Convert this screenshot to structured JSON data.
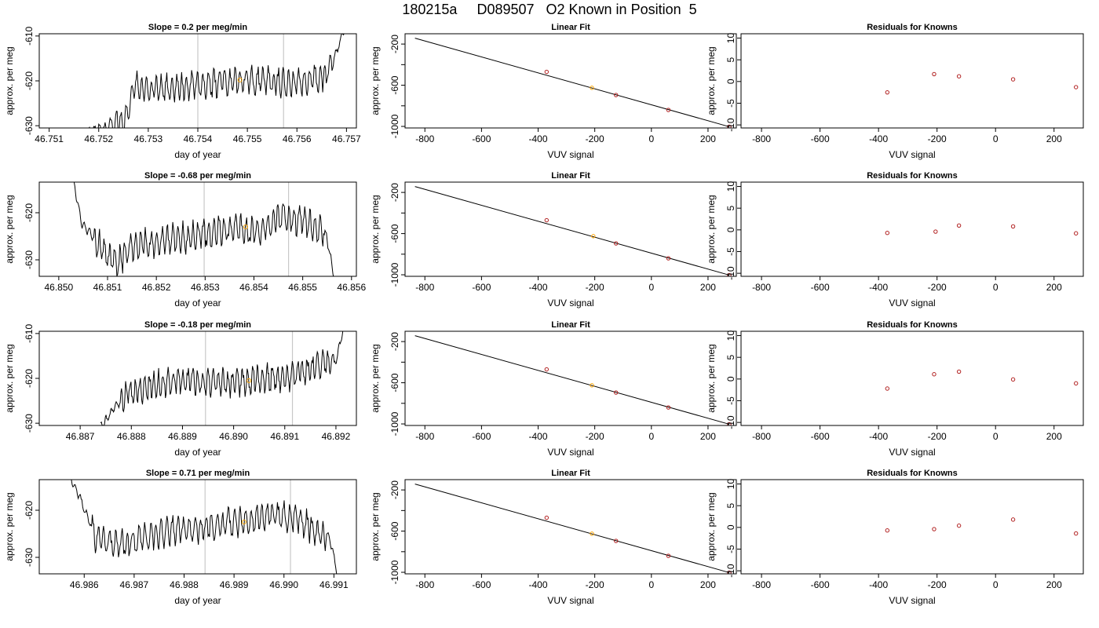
{
  "figure": {
    "title": "180215a     D089507   O2 Known in Position  5"
  },
  "colors": {
    "trace": "#000000",
    "fit_points": "#b22222",
    "highlight_point": "#ffa500",
    "marker_lines": "#c8c8c8",
    "residual_points": "#b22222"
  },
  "chart_data": [
    {
      "type": "line",
      "row": 0,
      "col": 0,
      "title": "Slope =  0.2  per meg/min",
      "xlabel": "day of year",
      "ylabel": "approx. per meg",
      "xlim": [
        46.7508,
        46.7572
      ],
      "ylim": [
        -630.5,
        -609.5
      ],
      "xticks": [
        46.751,
        46.752,
        46.753,
        46.754,
        46.755,
        46.756,
        46.757
      ],
      "xtick_labels": [
        "46.751",
        "46.752",
        "46.753",
        "46.754",
        "46.755",
        "46.756",
        "46.757"
      ],
      "yticks": [
        -610,
        -620,
        -630
      ],
      "ytick_labels": [
        "-610",
        "-620",
        "-630"
      ],
      "vlines": [
        46.754,
        46.75573
      ],
      "highlight": {
        "x": 46.75485,
        "y": -619.8
      },
      "trace": {
        "x_start": 46.7518,
        "x_end": 46.75695,
        "segments": [
          [
            0,
            -631
          ],
          [
            0.1,
            -630
          ],
          [
            0.15,
            -628
          ],
          [
            0.18,
            -620.5
          ],
          [
            0.22,
            -622
          ],
          [
            0.4,
            -621
          ],
          [
            0.62,
            -620
          ],
          [
            0.8,
            -620.5
          ],
          [
            0.93,
            -619
          ],
          [
            0.98,
            -612
          ],
          [
            1.0,
            -609
          ]
        ]
      }
    },
    {
      "type": "scatter",
      "row": 0,
      "col": 1,
      "title": "Linear Fit",
      "xlabel": "VUV signal",
      "ylabel": "approx. per meg",
      "xlim": [
        -870,
        300
      ],
      "ylim": [
        -1015,
        -100
      ],
      "xticks": [
        -800,
        -600,
        -400,
        -200,
        0,
        200
      ],
      "xtick_labels": [
        "-800",
        "-600",
        "-400",
        "-200",
        "0",
        "200"
      ],
      "yticks": [
        -200,
        -600,
        -1000
      ],
      "ytick_labels": [
        "-200",
        "-600",
        "-1000"
      ],
      "minor_yticks": [
        -400,
        -800
      ],
      "fit_line": {
        "x": [
          -835,
          275
        ],
        "y": [
          -143,
          -1003
        ]
      },
      "points": {
        "x": [
          -370,
          -210,
          -125,
          60,
          275
        ],
        "y": [
          -470,
          -625,
          -695,
          -840,
          -1003
        ]
      },
      "highlight_index": 1
    },
    {
      "type": "scatter",
      "row": 0,
      "col": 2,
      "title": "Residuals for Knowns",
      "xlabel": "VUV signal",
      "ylabel": "approx. per meg",
      "xlim": [
        -870,
        300
      ],
      "ylim": [
        -10.7,
        11
      ],
      "xticks": [
        -800,
        -600,
        -400,
        -200,
        0,
        200
      ],
      "xtick_labels": [
        "-800",
        "-600",
        "-400",
        "-200",
        "0",
        "200"
      ],
      "yticks": [
        10,
        5,
        0,
        -5,
        -10
      ],
      "ytick_labels": [
        "10",
        "5",
        "0",
        "-5",
        "-10"
      ],
      "points": {
        "x": [
          -370,
          -210,
          -125,
          60,
          275
        ],
        "y": [
          -2.5,
          1.7,
          1.2,
          0.5,
          -1.3
        ]
      }
    },
    {
      "type": "line",
      "row": 1,
      "col": 0,
      "title": "Slope =  -0.68  per meg/min",
      "xlabel": "day of year",
      "ylabel": "approx. per meg",
      "xlim": [
        46.8496,
        46.8561
      ],
      "ylim": [
        -633.5,
        -613.5
      ],
      "xticks": [
        46.85,
        46.851,
        46.852,
        46.853,
        46.854,
        46.855,
        46.856
      ],
      "xtick_labels": [
        "46.850",
        "46.851",
        "46.852",
        "46.853",
        "46.854",
        "46.855",
        "46.856"
      ],
      "yticks": [
        -620,
        -630
      ],
      "ytick_labels": [
        "-620",
        "-630"
      ],
      "vlines": [
        46.85298,
        46.85471
      ],
      "highlight": {
        "x": 46.85383,
        "y": -623
      },
      "trace": {
        "x_start": 46.8503,
        "x_end": 46.85565,
        "segments": [
          [
            0,
            -613
          ],
          [
            0.03,
            -622
          ],
          [
            0.1,
            -627
          ],
          [
            0.17,
            -631
          ],
          [
            0.22,
            -627
          ],
          [
            0.4,
            -625.5
          ],
          [
            0.6,
            -623.5
          ],
          [
            0.7,
            -624
          ],
          [
            0.8,
            -620.5
          ],
          [
            0.92,
            -623
          ],
          [
            0.97,
            -625
          ],
          [
            1.0,
            -634
          ]
        ]
      }
    },
    {
      "type": "scatter",
      "row": 1,
      "col": 1,
      "title": "Linear Fit",
      "xlabel": "VUV signal",
      "ylabel": "approx. per meg",
      "xlim": [
        -870,
        300
      ],
      "ylim": [
        -1015,
        -100
      ],
      "xticks": [
        -800,
        -600,
        -400,
        -200,
        0,
        200
      ],
      "xtick_labels": [
        "-800",
        "-600",
        "-400",
        "-200",
        "0",
        "200"
      ],
      "yticks": [
        -200,
        -600,
        -1000
      ],
      "ytick_labels": [
        "-200",
        "-600",
        "-1000"
      ],
      "minor_yticks": [
        -400,
        -800
      ],
      "fit_line": {
        "x": [
          -835,
          275
        ],
        "y": [
          -143,
          -1003
        ]
      },
      "points": {
        "x": [
          -370,
          -205,
          -125,
          60,
          275
        ],
        "y": [
          -470,
          -625,
          -695,
          -840,
          -1003
        ]
      },
      "highlight_index": 1
    },
    {
      "type": "scatter",
      "row": 1,
      "col": 2,
      "title": "Residuals for Knowns",
      "xlabel": "VUV signal",
      "ylabel": "approx. per meg",
      "xlim": [
        -870,
        300
      ],
      "ylim": [
        -10.7,
        11
      ],
      "xticks": [
        -800,
        -600,
        -400,
        -200,
        0,
        200
      ],
      "xtick_labels": [
        "-800",
        "-600",
        "-400",
        "-200",
        "0",
        "200"
      ],
      "yticks": [
        10,
        5,
        0,
        -5,
        -10
      ],
      "ytick_labels": [
        "10",
        "5",
        "0",
        "-5",
        "-10"
      ],
      "points": {
        "x": [
          -370,
          -205,
          -125,
          60,
          275
        ],
        "y": [
          -0.7,
          -0.4,
          1.0,
          0.8,
          -0.8
        ]
      }
    },
    {
      "type": "line",
      "row": 2,
      "col": 0,
      "title": "Slope =  -0.18  per meg/min",
      "xlabel": "day of year",
      "ylabel": "approx. per meg",
      "xlim": [
        46.8862,
        46.8924
      ],
      "ylim": [
        -630.5,
        -609.5
      ],
      "xticks": [
        46.887,
        46.888,
        46.889,
        46.89,
        46.891,
        46.892
      ],
      "xtick_labels": [
        "46.887",
        "46.888",
        "46.889",
        "46.890",
        "46.891",
        "46.892"
      ],
      "yticks": [
        -610,
        -620,
        -630
      ],
      "ytick_labels": [
        "-610",
        "-620",
        "-630"
      ],
      "vlines": [
        46.88945,
        46.89115
      ],
      "highlight": {
        "x": 46.8903,
        "y": -620.5
      },
      "trace": {
        "x_start": 46.8874,
        "x_end": 46.89215,
        "segments": [
          [
            0,
            -631
          ],
          [
            0.05,
            -627
          ],
          [
            0.12,
            -623
          ],
          [
            0.3,
            -620.5
          ],
          [
            0.5,
            -621
          ],
          [
            0.7,
            -620
          ],
          [
            0.8,
            -619.5
          ],
          [
            0.9,
            -617
          ],
          [
            0.97,
            -616
          ],
          [
            0.99,
            -611
          ],
          [
            1.0,
            -609
          ]
        ]
      }
    },
    {
      "type": "scatter",
      "row": 2,
      "col": 1,
      "title": "Linear Fit",
      "xlabel": "VUV signal",
      "ylabel": "approx. per meg",
      "xlim": [
        -870,
        300
      ],
      "ylim": [
        -1015,
        -100
      ],
      "xticks": [
        -800,
        -600,
        -400,
        -200,
        0,
        200
      ],
      "xtick_labels": [
        "-800",
        "-600",
        "-400",
        "-200",
        "0",
        "200"
      ],
      "yticks": [
        -200,
        -600,
        -1000
      ],
      "ytick_labels": [
        "-200",
        "-600",
        "-1000"
      ],
      "minor_yticks": [
        -400,
        -800
      ],
      "fit_line": {
        "x": [
          -835,
          275
        ],
        "y": [
          -143,
          -1003
        ]
      },
      "points": {
        "x": [
          -370,
          -210,
          -125,
          60,
          275
        ],
        "y": [
          -470,
          -625,
          -695,
          -840,
          -1003
        ]
      },
      "highlight_index": 1
    },
    {
      "type": "scatter",
      "row": 2,
      "col": 2,
      "title": "Residuals for Knowns",
      "xlabel": "VUV signal",
      "ylabel": "approx. per meg",
      "xlim": [
        -870,
        300
      ],
      "ylim": [
        -10.7,
        11
      ],
      "xticks": [
        -800,
        -600,
        -400,
        -200,
        0,
        200
      ],
      "xtick_labels": [
        "-800",
        "-600",
        "-400",
        "-200",
        "0",
        "200"
      ],
      "yticks": [
        10,
        5,
        0,
        -5,
        -10
      ],
      "ytick_labels": [
        "10",
        "5",
        "0",
        "-5",
        "-10"
      ],
      "points": {
        "x": [
          -370,
          -210,
          -125,
          60,
          275
        ],
        "y": [
          -2.2,
          1.1,
          1.7,
          -0.1,
          -1.0
        ]
      }
    },
    {
      "type": "line",
      "row": 3,
      "col": 0,
      "title": "Slope =  0.71  per meg/min",
      "xlabel": "day of year",
      "ylabel": "approx. per meg",
      "xlim": [
        46.9851,
        46.99145
      ],
      "ylim": [
        -633.5,
        -613.5
      ],
      "xticks": [
        46.986,
        46.987,
        46.988,
        46.989,
        46.99,
        46.991
      ],
      "xtick_labels": [
        "46.986",
        "46.987",
        "46.988",
        "46.989",
        "46.990",
        "46.991"
      ],
      "yticks": [
        -620,
        -630
      ],
      "ytick_labels": [
        "-620",
        "-630"
      ],
      "vlines": [
        46.98842,
        46.99013
      ],
      "highlight": {
        "x": 46.9892,
        "y": -622.5
      },
      "trace": {
        "x_start": 46.9857,
        "x_end": 46.99108,
        "segments": [
          [
            0,
            -613
          ],
          [
            0.03,
            -616
          ],
          [
            0.1,
            -626
          ],
          [
            0.2,
            -627
          ],
          [
            0.4,
            -624
          ],
          [
            0.6,
            -623
          ],
          [
            0.75,
            -621
          ],
          [
            0.85,
            -621.5
          ],
          [
            0.92,
            -625
          ],
          [
            0.97,
            -626
          ],
          [
            1.0,
            -634
          ]
        ]
      }
    },
    {
      "type": "scatter",
      "row": 3,
      "col": 1,
      "title": "Linear Fit",
      "xlabel": "VUV signal",
      "ylabel": "approx. per meg",
      "xlim": [
        -870,
        300
      ],
      "ylim": [
        -1015,
        -100
      ],
      "xticks": [
        -800,
        -600,
        -400,
        -200,
        0,
        200
      ],
      "xtick_labels": [
        "-800",
        "-600",
        "-400",
        "-200",
        "0",
        "200"
      ],
      "yticks": [
        -200,
        -600,
        -1000
      ],
      "ytick_labels": [
        "-200",
        "-600",
        "-1000"
      ],
      "minor_yticks": [
        -400,
        -800
      ],
      "fit_line": {
        "x": [
          -835,
          275
        ],
        "y": [
          -143,
          -1003
        ]
      },
      "points": {
        "x": [
          -370,
          -210,
          -125,
          60,
          275
        ],
        "y": [
          -470,
          -625,
          -695,
          -840,
          -1003
        ]
      },
      "highlight_index": 1
    },
    {
      "type": "scatter",
      "row": 3,
      "col": 2,
      "title": "Residuals for Knowns",
      "xlabel": "VUV signal",
      "ylabel": "approx. per meg",
      "xlim": [
        -870,
        300
      ],
      "ylim": [
        -10.7,
        11
      ],
      "xticks": [
        -800,
        -600,
        -400,
        -200,
        0,
        200
      ],
      "xtick_labels": [
        "-800",
        "-600",
        "-400",
        "-200",
        "0",
        "200"
      ],
      "yticks": [
        10,
        5,
        0,
        -5,
        -10
      ],
      "ytick_labels": [
        "10",
        "5",
        "0",
        "-5",
        "-10"
      ],
      "points": {
        "x": [
          -370,
          -210,
          -125,
          60,
          275
        ],
        "y": [
          -0.7,
          -0.4,
          0.4,
          1.8,
          -1.4
        ]
      }
    }
  ]
}
